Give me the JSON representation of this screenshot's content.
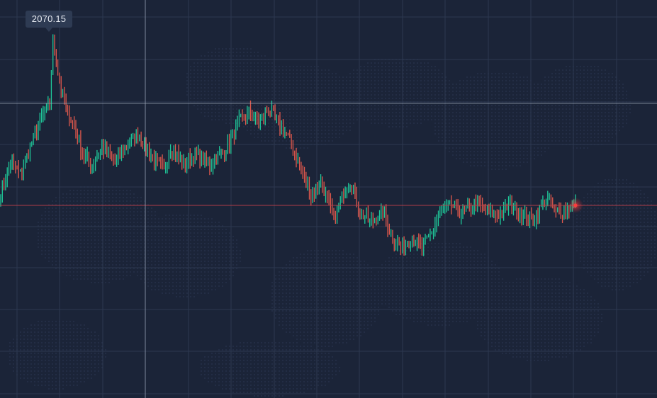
{
  "tooltip": {
    "label": "2070.15"
  },
  "colors": {
    "background": "#1b2438",
    "grid": "#2c3850",
    "up": "#1fc99a",
    "down": "#e0584c",
    "price_line": "#c0404a",
    "pulse": "#ff3b3b",
    "tooltip_bg": "#2e3b53"
  },
  "chart_data": {
    "type": "candlestick",
    "title": "",
    "xlabel": "",
    "ylabel": "",
    "grid": true,
    "legend": "none",
    "ylim": [
      1700,
      2080
    ],
    "crosshair_price": 2070.15,
    "last_price": 1858.4,
    "anchors": [
      [
        0,
        1876
      ],
      [
        6,
        1912
      ],
      [
        12,
        1897
      ],
      [
        20,
        1940
      ],
      [
        24,
        1962
      ],
      [
        30,
        1983
      ],
      [
        32,
        2062
      ],
      [
        36,
        2010
      ],
      [
        40,
        1978
      ],
      [
        46,
        1950
      ],
      [
        50,
        1922
      ],
      [
        56,
        1908
      ],
      [
        62,
        1930
      ],
      [
        70,
        1912
      ],
      [
        78,
        1935
      ],
      [
        84,
        1945
      ],
      [
        92,
        1920
      ],
      [
        100,
        1902
      ],
      [
        104,
        1930
      ],
      [
        112,
        1910
      ],
      [
        120,
        1920
      ],
      [
        128,
        1908
      ],
      [
        138,
        1928
      ],
      [
        146,
        1962
      ],
      [
        152,
        1972
      ],
      [
        158,
        1960
      ],
      [
        164,
        1978
      ],
      [
        170,
        1960
      ],
      [
        176,
        1942
      ],
      [
        184,
        1902
      ],
      [
        190,
        1870
      ],
      [
        196,
        1888
      ],
      [
        200,
        1866
      ],
      [
        204,
        1838
      ],
      [
        210,
        1875
      ],
      [
        214,
        1888
      ],
      [
        220,
        1850
      ],
      [
        226,
        1838
      ],
      [
        234,
        1850
      ],
      [
        240,
        1818
      ],
      [
        246,
        1805
      ],
      [
        252,
        1818
      ],
      [
        258,
        1806
      ],
      [
        264,
        1826
      ],
      [
        270,
        1852
      ],
      [
        276,
        1858
      ],
      [
        282,
        1848
      ],
      [
        290,
        1861
      ],
      [
        298,
        1852
      ],
      [
        304,
        1846
      ],
      [
        312,
        1860
      ],
      [
        318,
        1849
      ],
      [
        326,
        1840
      ],
      [
        334,
        1866
      ],
      [
        340,
        1850
      ],
      [
        346,
        1852
      ],
      [
        352,
        1860
      ]
    ],
    "sample_count": 353,
    "seed": 7
  }
}
